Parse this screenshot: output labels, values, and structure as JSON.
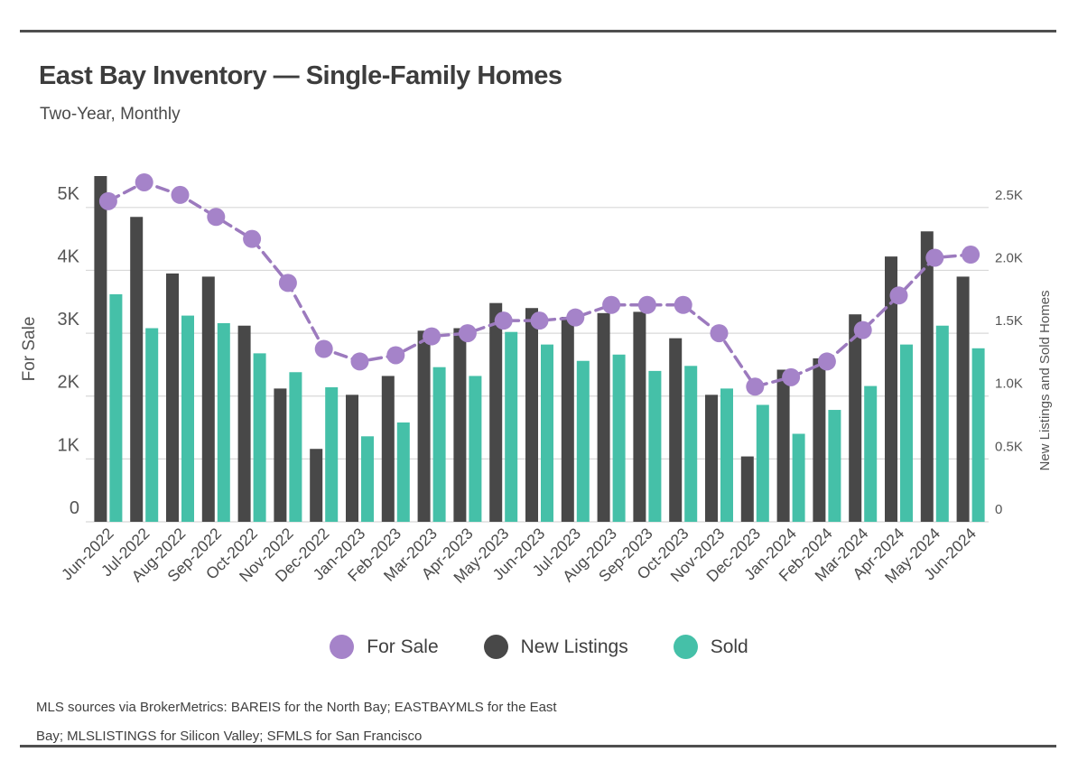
{
  "header": {
    "title": "East Bay Inventory — Single-Family Homes",
    "subtitle": "Two-Year, Monthly"
  },
  "legend": [
    {
      "label": "For Sale",
      "color": "#a583c9"
    },
    {
      "label": "New Listings",
      "color": "#484848"
    },
    {
      "label": "Sold",
      "color": "#45c0a8"
    }
  ],
  "footer": {
    "line1": "MLS sources via BrokerMetrics: BAREIS for the North Bay; EASTBAYMLS for the East",
    "line2": "Bay; MLSLISTINGS for Silicon Valley; SFMLS for San Francisco"
  },
  "chart_data": {
    "type": "bar+line",
    "categories": [
      "Jun-2022",
      "Jul-2022",
      "Aug-2022",
      "Sep-2022",
      "Oct-2022",
      "Nov-2022",
      "Dec-2022",
      "Jan-2023",
      "Feb-2023",
      "Mar-2023",
      "Apr-2023",
      "May-2023",
      "Jun-2023",
      "Jul-2023",
      "Aug-2023",
      "Sep-2023",
      "Oct-2023",
      "Nov-2023",
      "Dec-2023",
      "Jan-2024",
      "Feb-2024",
      "Mar-2024",
      "Apr-2024",
      "May-2024",
      "Jun-2024"
    ],
    "series": [
      {
        "name": "For Sale",
        "type": "line",
        "axis": "left",
        "color": "#a583c9",
        "line_color": "#9c7abe",
        "values": [
          5100,
          5400,
          5200,
          4850,
          4500,
          3800,
          2750,
          2550,
          2650,
          2950,
          3000,
          3200,
          3200,
          3250,
          3450,
          3450,
          3450,
          3000,
          2150,
          2300,
          2550,
          3050,
          3600,
          4200,
          4250
        ]
      },
      {
        "name": "New Listings",
        "type": "bar",
        "axis": "right",
        "color": "#484848",
        "values": [
          2750,
          2425,
          1975,
          1950,
          1560,
          1060,
          580,
          1010,
          1160,
          1520,
          1540,
          1740,
          1700,
          1630,
          1660,
          1670,
          1460,
          1010,
          520,
          1210,
          1300,
          1650,
          2110,
          2310,
          1950
        ]
      },
      {
        "name": "Sold",
        "type": "bar",
        "axis": "right",
        "color": "#45c0a8",
        "values": [
          1810,
          1540,
          1640,
          1580,
          1340,
          1190,
          1070,
          680,
          790,
          1230,
          1160,
          1510,
          1410,
          1280,
          1330,
          1200,
          1240,
          1060,
          930,
          700,
          890,
          1080,
          1410,
          1560,
          1380
        ]
      }
    ],
    "left_axis": {
      "label": "For Sale",
      "ticks": [
        "0",
        "1K",
        "2K",
        "3K",
        "4K",
        "5K"
      ],
      "tick_values": [
        0,
        1000,
        2000,
        3000,
        4000,
        5000
      ],
      "max": 5500
    },
    "right_axis": {
      "label": "New Listings and Sold Homes",
      "ticks": [
        "0",
        "0.5K",
        "1.0K",
        "1.5K",
        "2.0K",
        "2.5K"
      ],
      "tick_values": [
        0,
        500,
        1000,
        1500,
        2000,
        2500
      ],
      "max": 2750
    },
    "grid": true,
    "legend_position": "bottom",
    "grid_color": "#d8d8d8",
    "tick_color": "#555555"
  }
}
